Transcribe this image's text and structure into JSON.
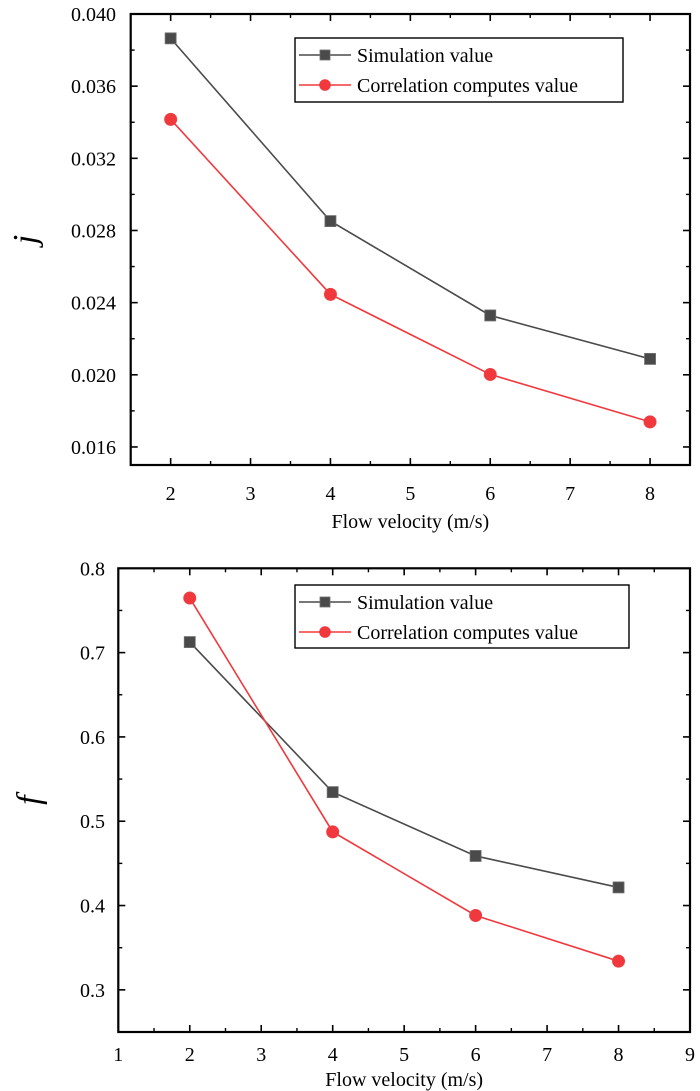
{
  "chart_data": [
    {
      "type": "line",
      "title": "",
      "xlabel": "Flow velocity (m/s)",
      "ylabel": "j",
      "xlim": [
        1.5,
        8.5
      ],
      "ylim": [
        0.015,
        0.04
      ],
      "xticks": [
        2,
        3,
        4,
        5,
        6,
        7,
        8
      ],
      "xtick_labels": [
        "2",
        "3",
        "4",
        "5",
        "6",
        "7",
        "8"
      ],
      "yticks": [
        0.016,
        0.02,
        0.024,
        0.028,
        0.032,
        0.036,
        0.04
      ],
      "ytick_labels": [
        "0.016",
        "0.020",
        "0.024",
        "0.028",
        "0.032",
        "0.036",
        "0.040"
      ],
      "grid": false,
      "legend_position": "top-right",
      "x": [
        2,
        4,
        6,
        8
      ],
      "series": [
        {
          "name": "Simulation value",
          "marker": "square",
          "color": "#4a4a4a",
          "values": [
            0.03865,
            0.02852,
            0.02329,
            0.02088
          ]
        },
        {
          "name": "Correlation computes value",
          "marker": "circle",
          "color": "#f0383d",
          "values": [
            0.03416,
            0.02446,
            0.02002,
            0.01739
          ]
        }
      ]
    },
    {
      "type": "line",
      "title": "",
      "xlabel": "Flow velocity (m/s)",
      "ylabel": "f",
      "xlim": [
        1,
        9
      ],
      "ylim": [
        0.25,
        0.8
      ],
      "xticks": [
        1,
        2,
        3,
        4,
        5,
        6,
        7,
        8,
        9
      ],
      "xtick_labels": [
        "1",
        "2",
        "3",
        "4",
        "5",
        "6",
        "7",
        "8",
        "9"
      ],
      "yticks": [
        0.3,
        0.4,
        0.5,
        0.6,
        0.7,
        0.8
      ],
      "ytick_labels": [
        "0.3",
        "0.4",
        "0.5",
        "0.6",
        "0.7",
        "0.8"
      ],
      "grid": false,
      "legend_position": "top-right",
      "x": [
        2,
        4,
        6,
        8
      ],
      "series": [
        {
          "name": "Simulation value",
          "marker": "square",
          "color": "#4a4a4a",
          "values": [
            0.7125,
            0.5345,
            0.4588,
            0.4215
          ]
        },
        {
          "name": "Correlation computes value",
          "marker": "circle",
          "color": "#f0383d",
          "values": [
            0.7647,
            0.4874,
            0.3882,
            0.334
          ]
        }
      ]
    }
  ]
}
